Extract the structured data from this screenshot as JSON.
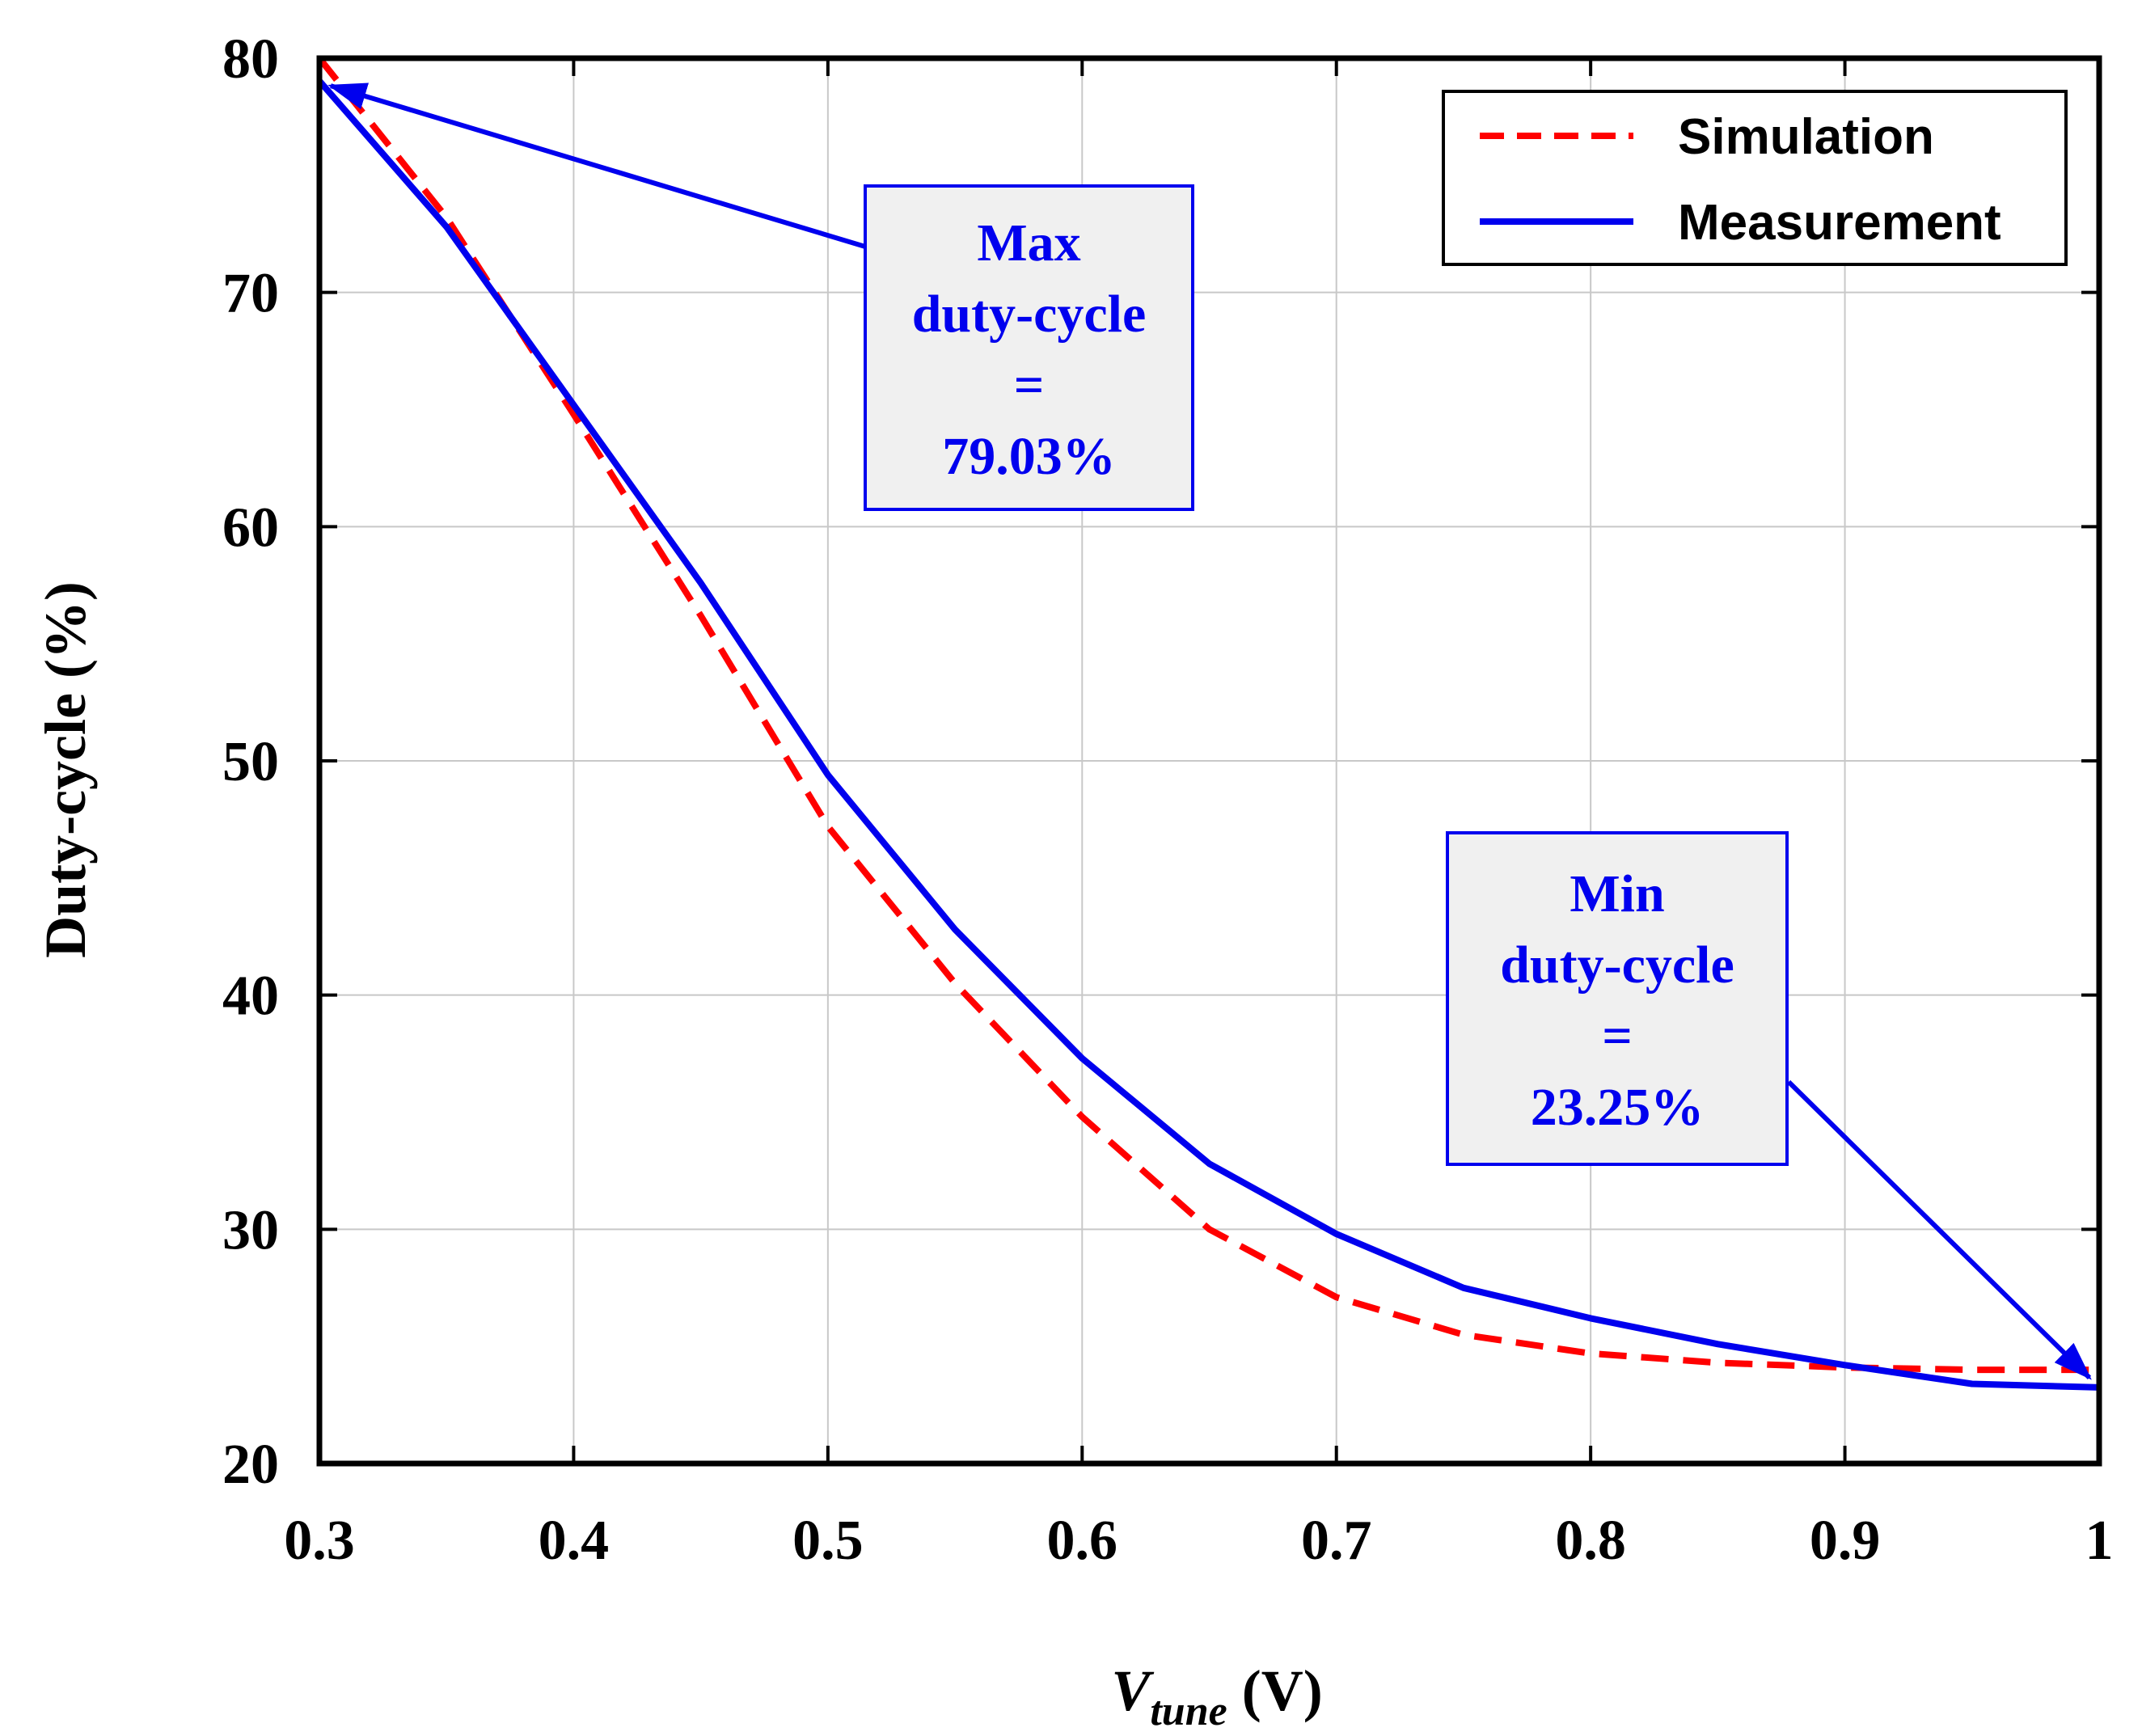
{
  "chart_data": {
    "type": "line",
    "xlabel_main": "V",
    "xlabel_sub": "tune",
    "xlabel_unit": " (V)",
    "ylabel": "Duty-cycle (%)",
    "xlim": [
      0.3,
      1.0
    ],
    "ylim": [
      20,
      80
    ],
    "grid": true,
    "legend_position": "top-right",
    "x_ticks": [
      0.3,
      0.4,
      0.5,
      0.6,
      0.7,
      0.8,
      0.9,
      1.0
    ],
    "x_tick_labels": [
      "0.3",
      "0.4",
      "0.5",
      "0.6",
      "0.7",
      "0.8",
      "0.9",
      "1"
    ],
    "y_ticks": [
      20,
      30,
      40,
      50,
      60,
      70,
      80
    ],
    "y_tick_labels": [
      "20",
      "30",
      "40",
      "50",
      "60",
      "70",
      "80"
    ],
    "series": [
      {
        "name": "Simulation",
        "style": "dashed",
        "color": "#ff0000",
        "x": [
          0.3,
          0.35,
          0.4,
          0.45,
          0.5,
          0.55,
          0.6,
          0.65,
          0.7,
          0.75,
          0.8,
          0.85,
          0.9,
          0.95,
          1.0
        ],
        "y": [
          80.0,
          73.2,
          64.8,
          56.2,
          47.2,
          40.5,
          34.8,
          30.0,
          27.1,
          25.5,
          24.7,
          24.3,
          24.1,
          24.0,
          24.0
        ]
      },
      {
        "name": "Measurement",
        "style": "solid",
        "color": "#0000ee",
        "x": [
          0.3,
          0.35,
          0.4,
          0.45,
          0.5,
          0.55,
          0.6,
          0.65,
          0.7,
          0.75,
          0.8,
          0.85,
          0.9,
          0.95,
          1.0
        ],
        "y": [
          79.03,
          72.8,
          65.2,
          57.6,
          49.4,
          42.8,
          37.3,
          32.8,
          29.8,
          27.5,
          26.2,
          25.1,
          24.2,
          23.4,
          23.25
        ]
      }
    ],
    "annotations": [
      {
        "lines": [
          "Max",
          "duty-cycle",
          "=",
          "79.03%"
        ],
        "target": {
          "x": 0.3,
          "y": 79.03
        }
      },
      {
        "lines": [
          "Min",
          "duty-cycle",
          "=",
          "23.25%"
        ],
        "target": {
          "x": 1.0,
          "y": 23.25
        }
      }
    ]
  },
  "colors": {
    "axis": "#000000",
    "grid": "#c8c8c8",
    "annotation_fill": "#f0f0f0",
    "annotation_border": "#0000ee"
  }
}
